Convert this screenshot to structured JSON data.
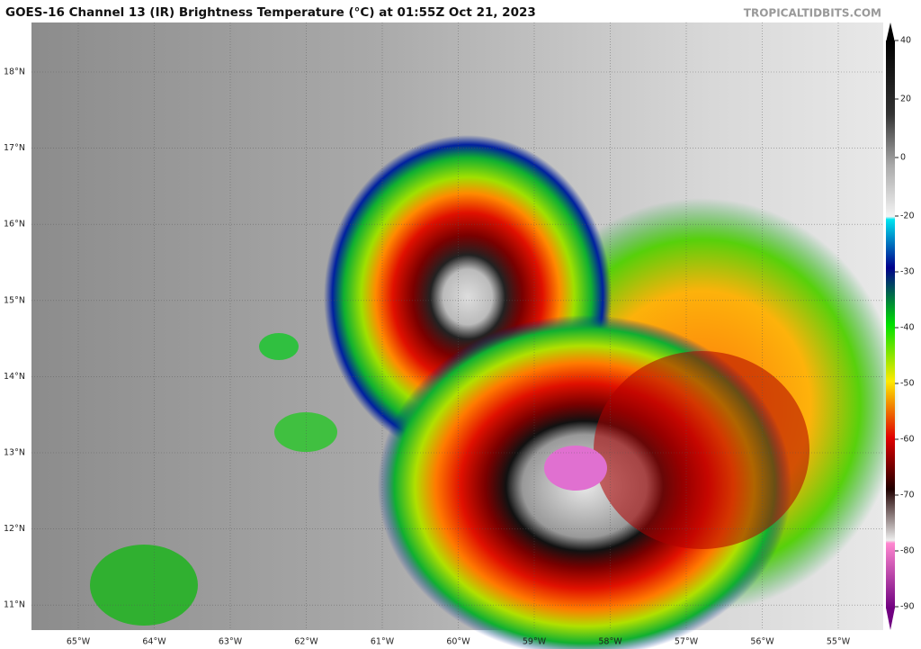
{
  "header": {
    "title": "GOES-16 Channel 13 (IR) Brightness Temperature (°C) at 01:55Z Oct 21, 2023",
    "credit": "TROPICALTIDBITS.COM"
  },
  "map": {
    "latitudes": [
      {
        "value": 18,
        "label": "18°N"
      },
      {
        "value": 17,
        "label": "17°N"
      },
      {
        "value": 16,
        "label": "16°N"
      },
      {
        "value": 15,
        "label": "15°N"
      },
      {
        "value": 14,
        "label": "14°N"
      },
      {
        "value": 13,
        "label": "13°N"
      },
      {
        "value": 12,
        "label": "12°N"
      },
      {
        "value": 11,
        "label": "11°N"
      }
    ],
    "longitudes": [
      {
        "value": -65,
        "label": "65°W"
      },
      {
        "value": -64,
        "label": "64°W"
      },
      {
        "value": -63,
        "label": "63°W"
      },
      {
        "value": -62,
        "label": "62°W"
      },
      {
        "value": -61,
        "label": "61°W"
      },
      {
        "value": -60,
        "label": "60°W"
      },
      {
        "value": -59,
        "label": "59°W"
      },
      {
        "value": -58,
        "label": "58°W"
      },
      {
        "value": -57,
        "label": "57°W"
      },
      {
        "value": -56,
        "label": "56°W"
      },
      {
        "value": -55,
        "label": "55°W"
      }
    ]
  },
  "colorbar": {
    "ticks": [
      40,
      20,
      0,
      -20,
      -30,
      -40,
      -50,
      -60,
      -70,
      -80,
      -90
    ]
  }
}
